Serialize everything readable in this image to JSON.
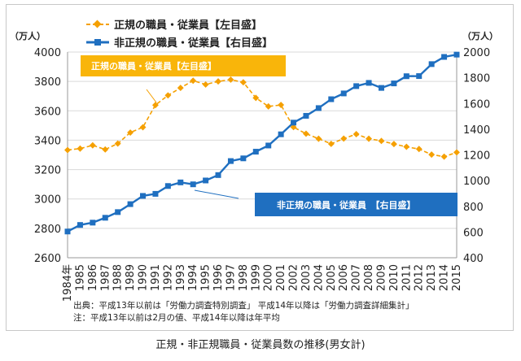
{
  "chart_data": {
    "type": "line",
    "categories": [
      "1984年",
      "1985",
      "1986",
      "1987",
      "1988",
      "1989",
      "1990",
      "1991",
      "1992",
      "1993",
      "1994",
      "1995",
      "1996",
      "1997",
      "1998",
      "1999",
      "2000",
      "2001",
      "2002",
      "2003",
      "2004",
      "2005",
      "2006",
      "2007",
      "2008",
      "2009",
      "2010",
      "2011",
      "2012",
      "2013",
      "2014",
      "2015"
    ],
    "series": [
      {
        "name": "正規の職員・従業員【左目盛】",
        "axis": "left",
        "color": "#f5a000",
        "style": "dashed",
        "marker": "diamond",
        "values": [
          3333,
          3343,
          3365,
          3337,
          3377,
          3452,
          3488,
          3639,
          3705,
          3756,
          3805,
          3779,
          3800,
          3812,
          3794,
          3688,
          3630,
          3640,
          3489,
          3444,
          3410,
          3375,
          3411,
          3441,
          3410,
          3395,
          3374,
          3355,
          3340,
          3302,
          3288,
          3317
        ]
      },
      {
        "name": "非正規の職員・従業員【右目盛】",
        "axis": "right",
        "color": "#1f6fc0",
        "style": "solid",
        "marker": "square",
        "values": [
          604,
          655,
          673,
          711,
          755,
          817,
          881,
          897,
          958,
          986,
          971,
          1001,
          1043,
          1152,
          1173,
          1225,
          1273,
          1360,
          1451,
          1504,
          1564,
          1633,
          1678,
          1735,
          1760,
          1721,
          1756,
          1812,
          1813,
          1906,
          1962,
          1980
        ]
      }
    ],
    "left_axis": {
      "unit_label": "（万人）",
      "min": 2600,
      "max": 4000,
      "step": 200
    },
    "right_axis": {
      "unit_label": "（万人）",
      "min": 400,
      "max": 2000,
      "step": 200
    },
    "annotations": {
      "regular_box": "正規の職員・従業員【左目盛】",
      "nonregular_box": "非正規の職員・従業員　【右目盛】"
    },
    "notes": [
      "出典：平成13年以前は「労働力調査特別調査」 平成14年以降は「労働力調査詳細集計」",
      "注：平成13年以前は2月の値、平成14年以降は年平均"
    ],
    "title": "正規・非正規職員・従業員数の推移(男女計)"
  }
}
